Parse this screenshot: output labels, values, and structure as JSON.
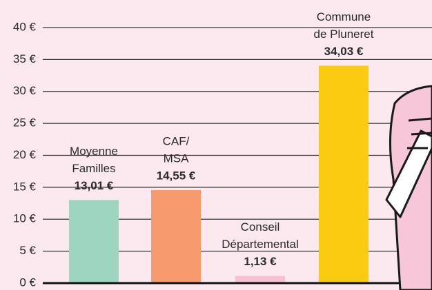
{
  "chart_data": {
    "type": "bar",
    "categories": [
      [
        "Moyenne",
        "Familles"
      ],
      [
        "CAF/",
        "MSA"
      ],
      [
        "Conseil",
        "Départemental"
      ],
      [
        "Commune",
        "de Pluneret"
      ]
    ],
    "values": [
      13.01,
      14.55,
      1.13,
      34.03
    ],
    "value_labels": [
      "13,01 €",
      "14,55 €",
      "1,13 €",
      "34,03 €"
    ],
    "colors": [
      "#9dd5c0",
      "#f79a6e",
      "#f7c0d4",
      "#fbcb12"
    ],
    "ylim": [
      0,
      40
    ],
    "yticks": [
      {
        "value": 0,
        "label": "0 €"
      },
      {
        "value": 5,
        "label": "5 €"
      },
      {
        "value": 10,
        "label": "10 €"
      },
      {
        "value": 15,
        "label": "15 €"
      },
      {
        "value": 20,
        "label": "20 €"
      },
      {
        "value": 25,
        "label": "25 €"
      },
      {
        "value": 30,
        "label": "30 €"
      },
      {
        "value": 35,
        "label": "35 €"
      },
      {
        "value": 40,
        "label": "40 €"
      }
    ],
    "grid": true
  }
}
